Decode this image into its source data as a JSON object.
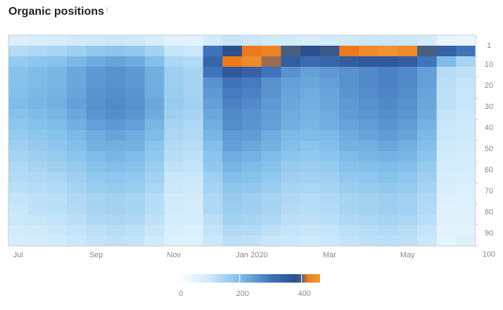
{
  "chart_data": {
    "type": "heatmap",
    "title": "Organic positions",
    "info_icon": "i",
    "categories": [
      "Jul",
      null,
      null,
      null,
      "Sep",
      null,
      null,
      null,
      "Nov",
      null,
      null,
      null,
      "Jan 2020",
      null,
      null,
      null,
      "Mar",
      null,
      null,
      null,
      "May",
      null,
      null,
      null
    ],
    "ybins": [
      0,
      5,
      10,
      15,
      20,
      25,
      30,
      35,
      40,
      45,
      50,
      55,
      60,
      65,
      70,
      75,
      80,
      85,
      90,
      95,
      100
    ],
    "ylim": [
      0,
      100
    ],
    "yticks": [
      1,
      10,
      20,
      30,
      40,
      50,
      60,
      70,
      80,
      90,
      100
    ],
    "y_inverted": true,
    "zlim": [
      0,
      460
    ],
    "zticks": [
      0,
      200,
      400
    ],
    "colorscale": [
      [
        0,
        "#ffffff"
      ],
      [
        100,
        "#cfeafb"
      ],
      [
        200,
        "#7fbde9"
      ],
      [
        300,
        "#3f73bb"
      ],
      [
        380,
        "#2c4f8e"
      ],
      [
        400,
        "#4a5f80"
      ],
      [
        420,
        "#ec7a1c"
      ],
      [
        460,
        "#f39a3a"
      ]
    ],
    "values": [
      [
        76,
        80,
        84,
        92,
        100,
        104,
        100,
        88,
        64,
        60,
        92,
        112,
        108,
        100,
        92,
        88,
        92,
        100,
        104,
        108,
        104,
        92,
        48,
        44
      ],
      [
        133,
        140,
        147,
        161,
        175,
        182,
        175,
        154,
        112,
        105,
        300,
        380,
        420,
        430,
        400,
        380,
        390,
        420,
        440,
        450,
        440,
        400,
        340,
        300
      ],
      [
        171,
        180,
        189,
        207,
        225,
        234,
        225,
        198,
        144,
        135,
        330,
        420,
        440,
        410,
        350,
        320,
        330,
        350,
        360,
        360,
        350,
        300,
        200,
        150
      ],
      [
        190,
        200,
        210,
        230,
        250,
        260,
        250,
        220,
        160,
        150,
        300,
        360,
        340,
        300,
        260,
        240,
        250,
        260,
        270,
        280,
        270,
        240,
        130,
        120
      ],
      [
        190,
        200,
        210,
        230,
        250,
        260,
        250,
        220,
        160,
        150,
        260,
        300,
        290,
        260,
        240,
        230,
        240,
        260,
        270,
        280,
        270,
        240,
        125,
        115
      ],
      [
        195,
        205,
        215,
        235,
        255,
        265,
        255,
        225,
        165,
        150,
        250,
        290,
        280,
        255,
        235,
        225,
        235,
        255,
        265,
        275,
        265,
        235,
        120,
        110
      ],
      [
        200,
        210,
        220,
        240,
        260,
        270,
        260,
        230,
        170,
        155,
        240,
        280,
        270,
        250,
        230,
        220,
        230,
        250,
        260,
        270,
        260,
        230,
        120,
        110
      ],
      [
        190,
        200,
        210,
        230,
        255,
        265,
        255,
        225,
        160,
        150,
        230,
        270,
        260,
        245,
        225,
        215,
        225,
        245,
        255,
        265,
        255,
        225,
        115,
        105
      ],
      [
        180,
        190,
        200,
        220,
        240,
        250,
        240,
        210,
        150,
        140,
        220,
        265,
        255,
        240,
        220,
        210,
        220,
        235,
        245,
        255,
        245,
        215,
        110,
        100
      ],
      [
        170,
        180,
        190,
        205,
        225,
        235,
        225,
        200,
        145,
        135,
        210,
        250,
        245,
        225,
        205,
        200,
        205,
        225,
        235,
        245,
        235,
        205,
        105,
        100
      ],
      [
        160,
        170,
        180,
        195,
        215,
        220,
        215,
        185,
        135,
        130,
        195,
        240,
        230,
        215,
        195,
        185,
        195,
        215,
        220,
        230,
        220,
        195,
        100,
        95
      ],
      [
        150,
        160,
        170,
        185,
        200,
        210,
        200,
        175,
        130,
        120,
        185,
        225,
        215,
        200,
        185,
        175,
        185,
        200,
        210,
        215,
        210,
        185,
        95,
        90
      ],
      [
        140,
        150,
        160,
        170,
        190,
        195,
        190,
        165,
        120,
        115,
        175,
        210,
        200,
        190,
        170,
        165,
        170,
        190,
        195,
        200,
        195,
        170,
        90,
        85
      ],
      [
        135,
        140,
        145,
        160,
        175,
        180,
        175,
        155,
        110,
        105,
        160,
        195,
        190,
        175,
        160,
        155,
        160,
        175,
        180,
        190,
        180,
        160,
        85,
        80
      ],
      [
        125,
        130,
        135,
        150,
        165,
        170,
        165,
        145,
        105,
        100,
        150,
        180,
        175,
        165,
        150,
        145,
        150,
        165,
        170,
        175,
        170,
        150,
        80,
        75
      ],
      [
        115,
        120,
        125,
        140,
        150,
        155,
        150,
        130,
        95,
        90,
        140,
        170,
        160,
        150,
        140,
        130,
        140,
        150,
        155,
        160,
        155,
        140,
        75,
        70
      ],
      [
        110,
        120,
        125,
        135,
        150,
        155,
        150,
        130,
        95,
        90,
        140,
        165,
        160,
        150,
        135,
        130,
        135,
        150,
        155,
        160,
        155,
        135,
        70,
        70
      ],
      [
        105,
        110,
        115,
        125,
        140,
        145,
        140,
        120,
        90,
        85,
        125,
        155,
        150,
        140,
        125,
        120,
        125,
        140,
        145,
        150,
        145,
        125,
        65,
        65
      ],
      [
        95,
        100,
        105,
        115,
        125,
        130,
        125,
        110,
        80,
        75,
        115,
        140,
        135,
        125,
        115,
        110,
        115,
        125,
        130,
        135,
        130,
        115,
        60,
        60
      ],
      [
        85,
        90,
        95,
        105,
        115,
        120,
        115,
        100,
        70,
        70,
        105,
        125,
        120,
        110,
        105,
        100,
        105,
        115,
        120,
        125,
        120,
        105,
        55,
        70
      ]
    ]
  }
}
